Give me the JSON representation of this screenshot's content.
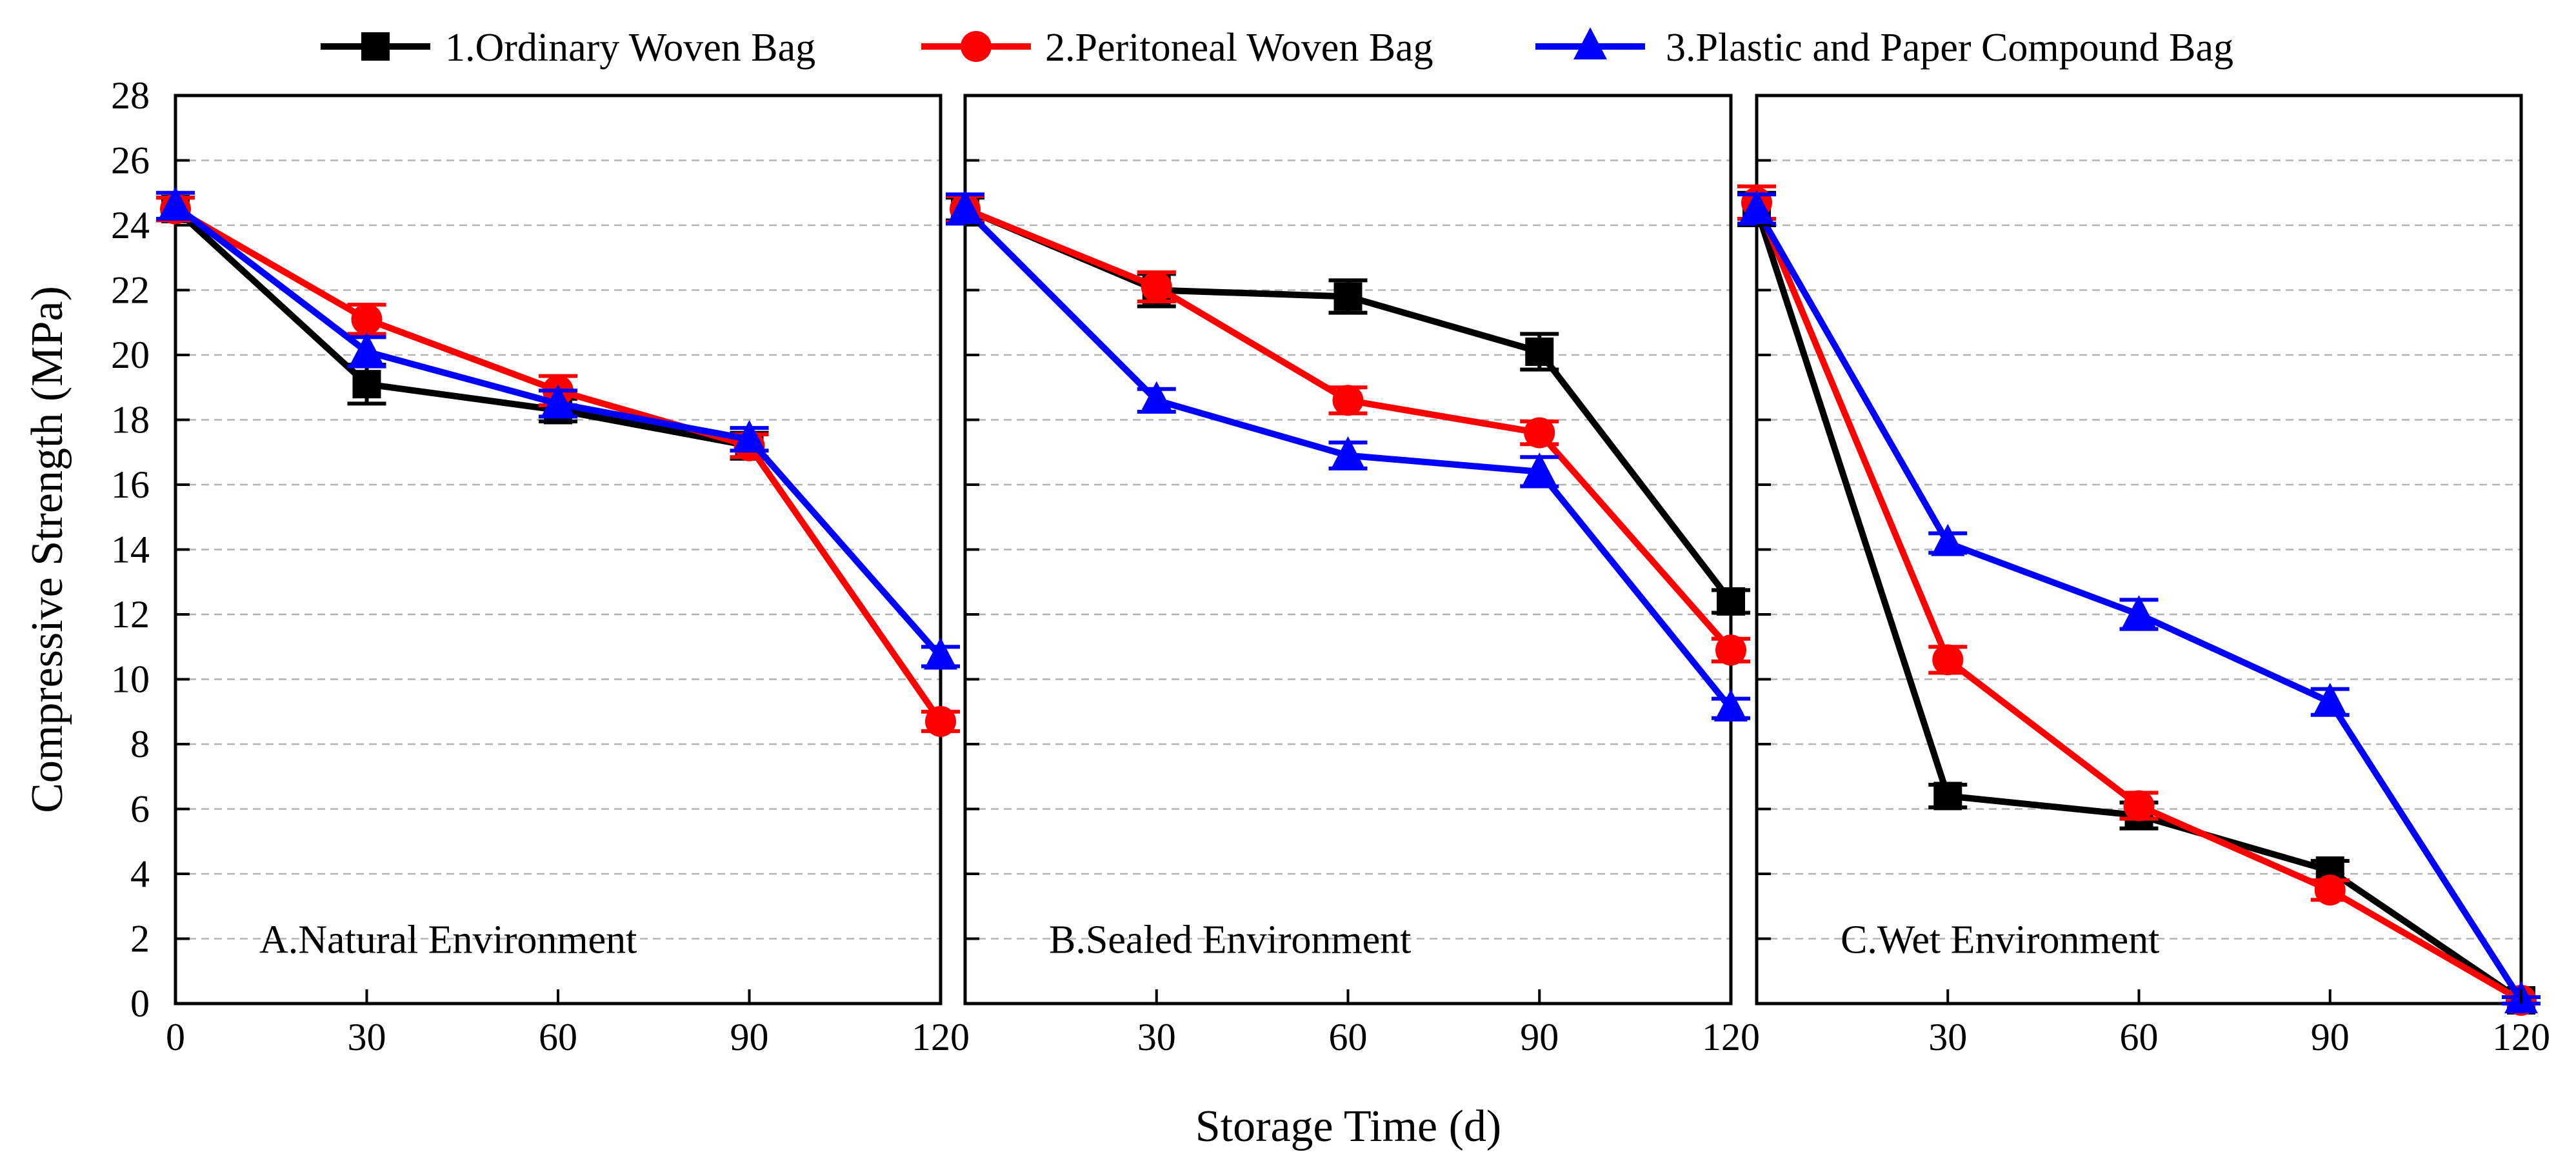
{
  "chart_data": {
    "type": "line",
    "ylabel": "Compressive Strength (MPa)",
    "xlabel": "Storage Time (d)",
    "ylim": [
      0,
      28
    ],
    "yticks": [
      0,
      2,
      4,
      6,
      8,
      10,
      12,
      14,
      16,
      18,
      20,
      22,
      24,
      26,
      28
    ],
    "xlim": [
      0,
      120
    ],
    "xticks": [
      0,
      30,
      60,
      90,
      120
    ],
    "grid": "horizontal dashed",
    "legend_position": "top",
    "legend": [
      {
        "name": "1.Ordinary Woven Bag",
        "color": "#000000",
        "marker": "square"
      },
      {
        "name": "2.Peritoneal Woven Bag",
        "color": "#ff0000",
        "marker": "circle"
      },
      {
        "name": "3.Plastic and Paper Compound Bag",
        "color": "#0000ff",
        "marker": "triangle"
      }
    ],
    "panels": [
      {
        "title": "A.Natural Environment",
        "x": [
          0,
          30,
          60,
          90,
          120
        ],
        "series": [
          {
            "name": "1.Ordinary Woven Bag",
            "values": [
              24.5,
              19.1,
              18.3,
              17.2,
              null
            ],
            "errors": [
              0.35,
              0.6,
              0.35,
              0.4,
              null
            ]
          },
          {
            "name": "2.Peritoneal Woven Bag",
            "values": [
              24.5,
              21.1,
              18.9,
              17.2,
              8.7
            ],
            "errors": [
              0.35,
              0.45,
              0.45,
              0.35,
              0.3
            ]
          },
          {
            "name": "3.Plastic and Paper Compound Bag",
            "values": [
              24.6,
              20.1,
              18.5,
              17.4,
              10.7
            ],
            "errors": [
              0.4,
              0.45,
              0.4,
              0.35,
              0.3
            ]
          }
        ]
      },
      {
        "title": "B.Sealed Environment",
        "x": [
          0,
          30,
          60,
          90,
          120
        ],
        "series": [
          {
            "name": "1.Ordinary Woven Bag",
            "values": [
              24.5,
              22.0,
              21.8,
              20.1,
              12.4
            ],
            "errors": [
              0.35,
              0.5,
              0.5,
              0.55,
              0.35
            ]
          },
          {
            "name": "2.Peritoneal Woven Bag",
            "values": [
              24.5,
              22.1,
              18.6,
              17.6,
              10.9
            ],
            "errors": [
              0.4,
              0.45,
              0.4,
              0.35,
              0.35
            ]
          },
          {
            "name": "3.Plastic and Paper Compound Bag",
            "values": [
              24.5,
              18.6,
              16.9,
              16.4,
              9.1
            ],
            "errors": [
              0.45,
              0.35,
              0.4,
              0.45,
              0.3
            ]
          }
        ]
      },
      {
        "title": "C.Wet Environment",
        "x": [
          0,
          30,
          60,
          90,
          120
        ],
        "series": [
          {
            "name": "1.Ordinary Woven Bag",
            "values": [
              24.5,
              6.4,
              5.8,
              4.1,
              0.1
            ],
            "errors": [
              0.5,
              0.35,
              0.4,
              0.3,
              0.1
            ]
          },
          {
            "name": "2.Peritoneal Woven Bag",
            "values": [
              24.7,
              10.6,
              6.1,
              3.5,
              0.1
            ],
            "errors": [
              0.5,
              0.4,
              0.4,
              0.3,
              0.1
            ]
          },
          {
            "name": "3.Plastic and Paper Compound Bag",
            "values": [
              24.5,
              14.2,
              12.0,
              9.3,
              0.1
            ],
            "errors": [
              0.45,
              0.3,
              0.45,
              0.4,
              0.1
            ]
          }
        ]
      }
    ]
  }
}
